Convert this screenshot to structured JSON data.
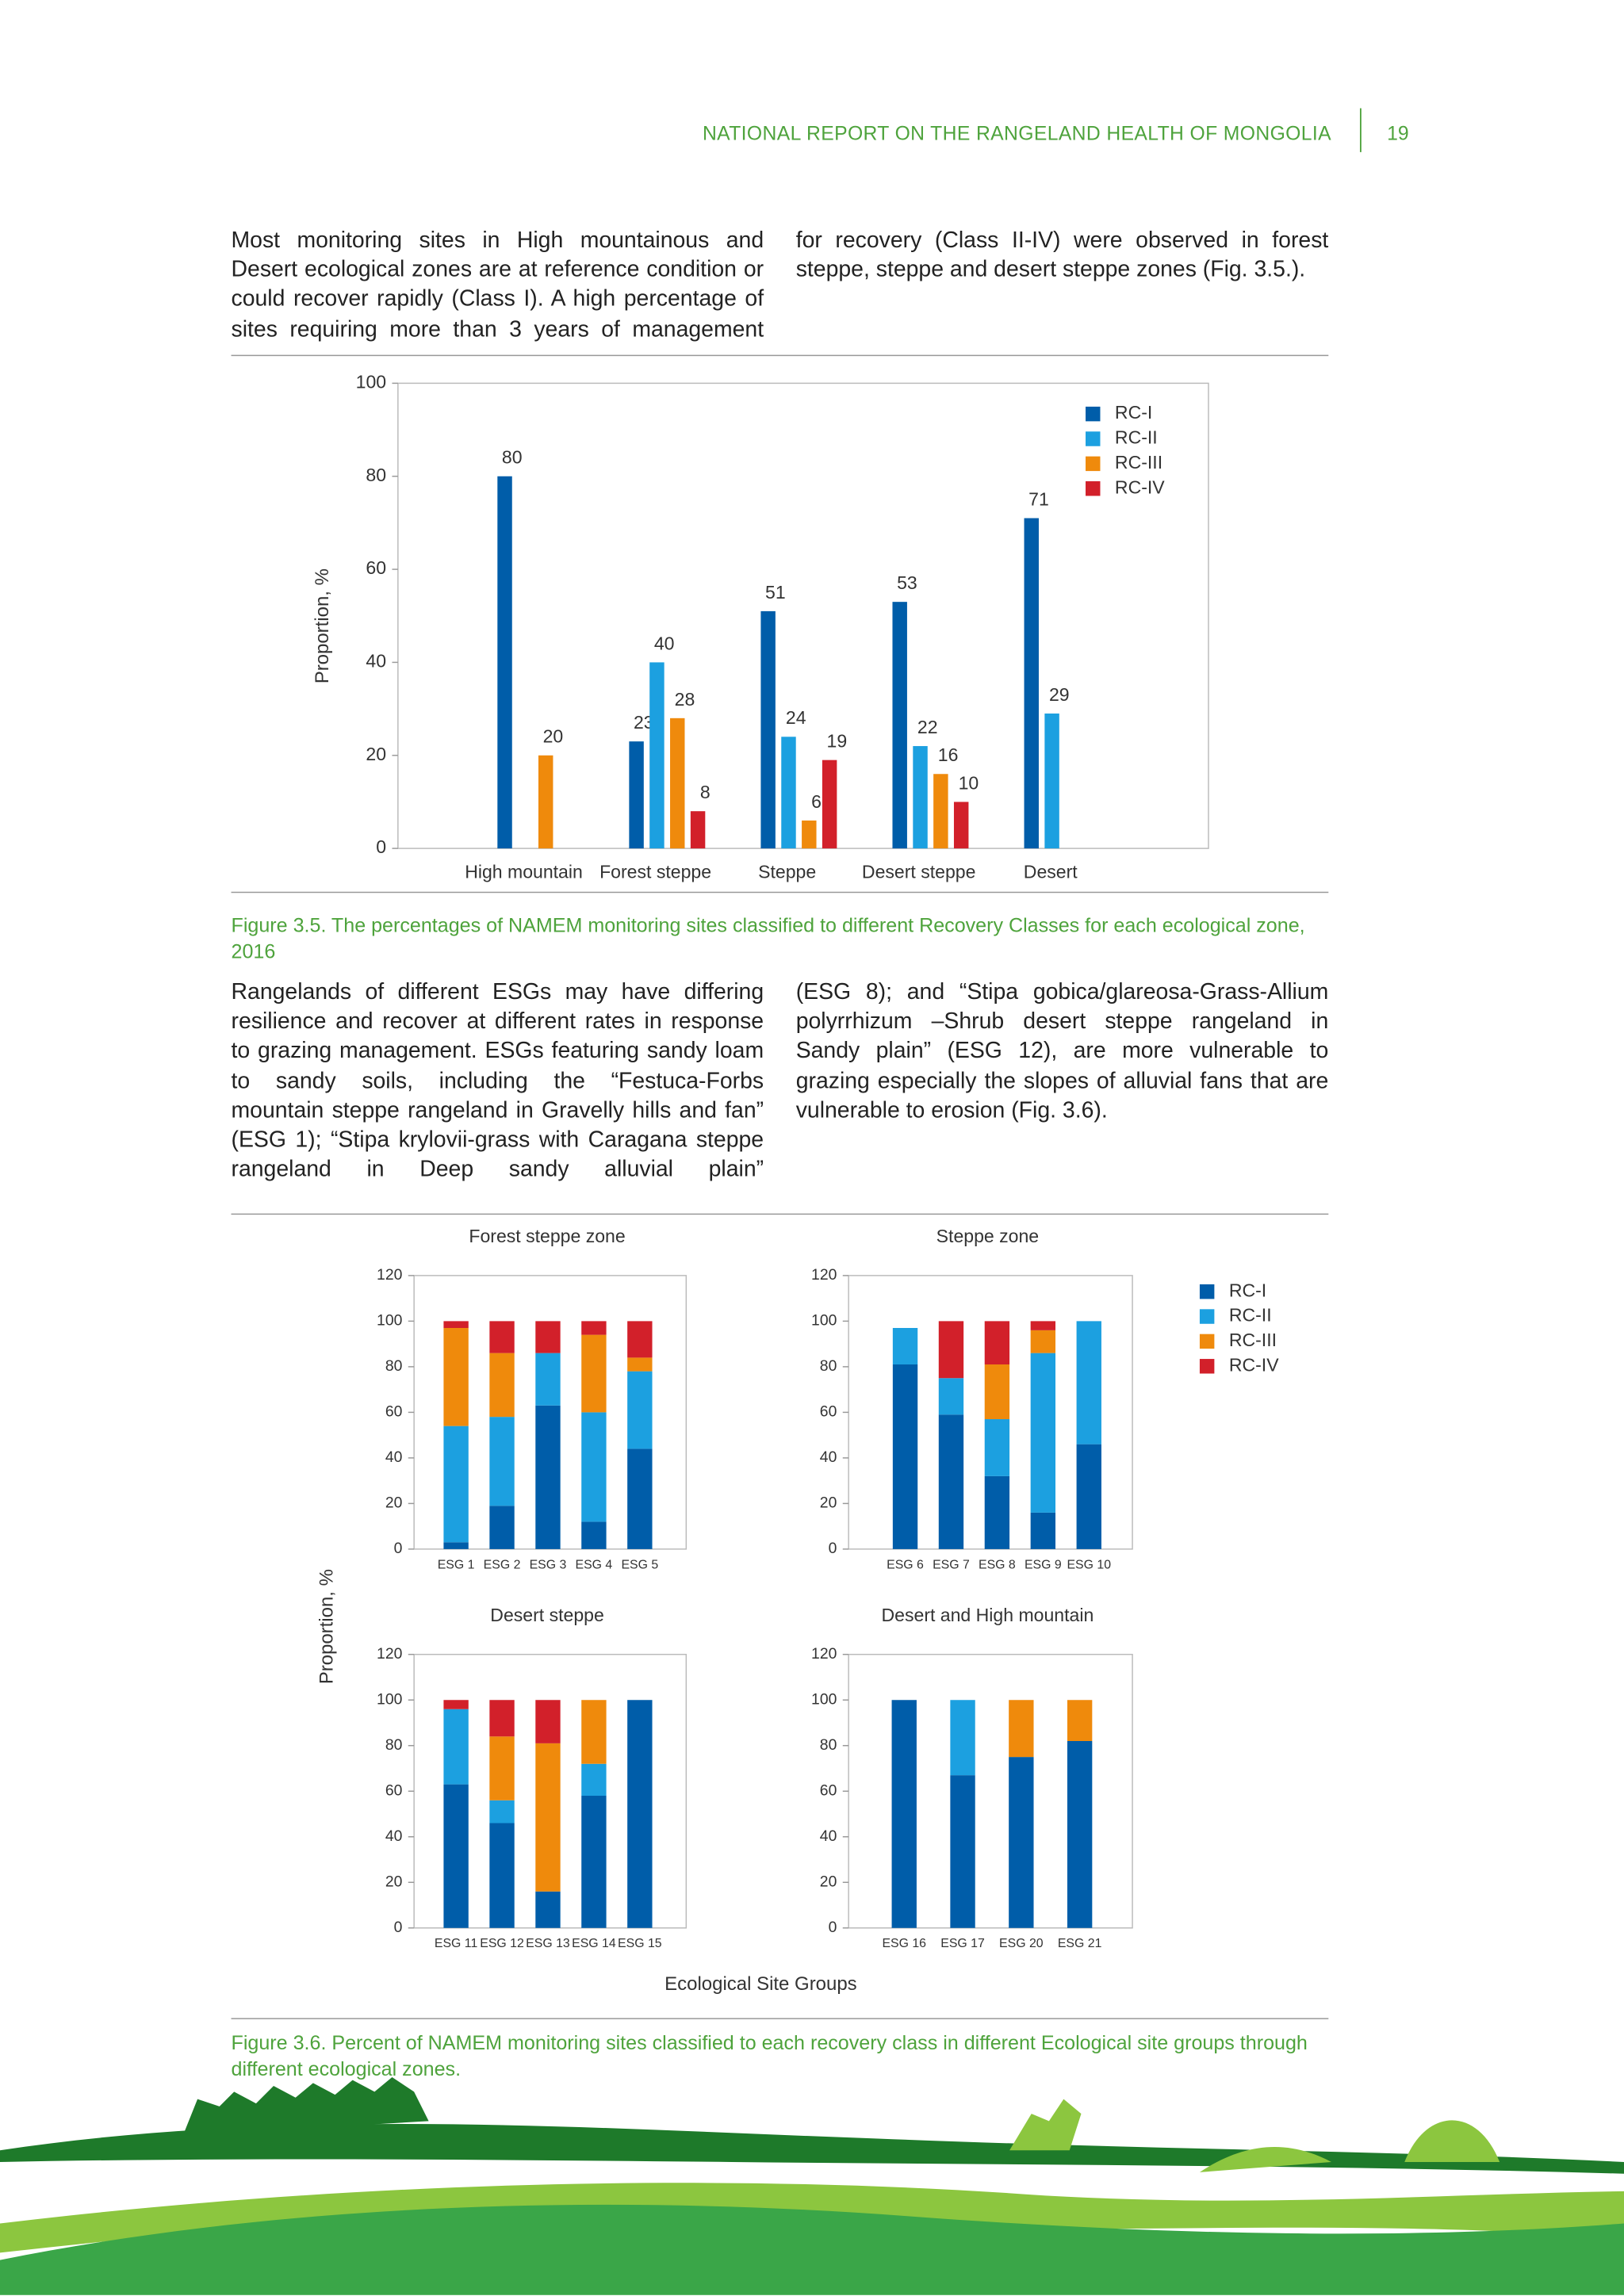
{
  "header": {
    "title": "NATIONAL REPORT ON THE RANGELAND HEALTH OF MONGOLIA",
    "page": "19"
  },
  "text": {
    "block1_left": "Most monitoring sites in High mountainous and Desert ecological zones are at reference condition or could recover rapidly (Class I). A high percentage of sites requiring more than 3 years of management",
    "block1_right": "for recovery (Class II-IV) were observed in forest steppe, steppe and desert steppe zones (Fig. 3.5.).",
    "block2_left": "Rangelands of different ESGs may have differing resilience and recover at different rates in response to grazing management. ESGs featuring sandy loam to sandy soils, including the “Festuca-Forbs mountain steppe rangeland in Gravelly hills and fan” (ESG 1); “Stipa krylovii-grass with Caragana steppe rangeland in Deep sandy alluvial plain”",
    "block2_right": "(ESG 8); and “Stipa gobica/glareosa-Grass-Allium polyrrhizum –Shrub desert steppe rangeland in Sandy plain” (ESG 12), are more vulnerable to grazing especially the slopes of alluvial fans that are vulnerable to erosion (Fig. 3.6)."
  },
  "captions": [
    "Figure 3.5. The percentages of NAMEM monitoring sites classified to different Recovery Classes for each ecological zone, 2016",
    "Figure 3.6. Percent of NAMEM monitoring sites classified to each recovery class in different Ecological site groups through different ecological zones."
  ],
  "figure2": {
    "ylabel": "Proportion, %",
    "xlabel": "Ecological Site Groups"
  },
  "chart_data": [
    {
      "type": "bar",
      "ylabel": "Proportion, %",
      "categories": [
        "High mountain",
        "Forest steppe",
        "Steppe",
        "Desert steppe",
        "Desert"
      ],
      "series": [
        {
          "name": "RC-I",
          "color": "#005da9",
          "values": [
            80,
            23,
            51,
            53,
            71
          ]
        },
        {
          "name": "RC-II",
          "color": "#1ca0e0",
          "values": [
            null,
            40,
            24,
            22,
            29
          ]
        },
        {
          "name": "RC-III",
          "color": "#ef8a0c",
          "values": [
            20,
            28,
            6,
            16,
            null
          ]
        },
        {
          "name": "RC-IV",
          "color": "#d2202a",
          "values": [
            null,
            8,
            19,
            10,
            null
          ]
        }
      ],
      "ylim": [
        0,
        100
      ],
      "yticks": [
        0,
        20,
        40,
        60,
        80,
        100
      ],
      "grid": false,
      "legend": "upper right"
    },
    {
      "type": "stacked_bar",
      "title": "Forest steppe zone",
      "categories": [
        "ESG 1",
        "ESG 2",
        "ESG 3",
        "ESG 4",
        "ESG 5"
      ],
      "series": [
        {
          "name": "RC-I",
          "color": "#005da9",
          "values": [
            3,
            19,
            63,
            12,
            44
          ]
        },
        {
          "name": "RC-II",
          "color": "#1ca0e0",
          "values": [
            51,
            39,
            23,
            48,
            34
          ]
        },
        {
          "name": "RC-III",
          "color": "#ef8a0c",
          "values": [
            43,
            28,
            0,
            34,
            6
          ]
        },
        {
          "name": "RC-IV",
          "color": "#d2202a",
          "values": [
            3,
            14,
            14,
            6,
            16
          ]
        }
      ],
      "ylim": [
        0,
        120
      ],
      "yticks": [
        0,
        20,
        40,
        60,
        80,
        100,
        120
      ],
      "legend": "right"
    },
    {
      "type": "stacked_bar",
      "title": "Steppe zone",
      "categories": [
        "ESG 6",
        "ESG 7",
        "ESG 8",
        "ESG 9",
        "ESG 10"
      ],
      "series": [
        {
          "name": "RC-I",
          "color": "#005da9",
          "values": [
            81,
            59,
            32,
            16,
            46
          ]
        },
        {
          "name": "RC-II",
          "color": "#1ca0e0",
          "values": [
            16,
            16,
            25,
            70,
            54
          ]
        },
        {
          "name": "RC-III",
          "color": "#ef8a0c",
          "values": [
            0,
            0,
            24,
            10,
            0
          ]
        },
        {
          "name": "RC-IV",
          "color": "#d2202a",
          "values": [
            0,
            25,
            19,
            4,
            0
          ]
        }
      ],
      "ylim": [
        0,
        120
      ],
      "yticks": [
        0,
        20,
        40,
        60,
        80,
        100,
        120
      ]
    },
    {
      "type": "stacked_bar",
      "title": "Desert steppe",
      "categories": [
        "ESG 11",
        "ESG 12",
        "ESG 13",
        "ESG 14",
        "ESG 15"
      ],
      "series": [
        {
          "name": "RC-I",
          "color": "#005da9",
          "values": [
            63,
            46,
            16,
            58,
            100
          ]
        },
        {
          "name": "RC-II",
          "color": "#1ca0e0",
          "values": [
            33,
            10,
            0,
            14,
            0
          ]
        },
        {
          "name": "RC-III",
          "color": "#ef8a0c",
          "values": [
            0,
            28,
            65,
            28,
            0
          ]
        },
        {
          "name": "RC-IV",
          "color": "#d2202a",
          "values": [
            4,
            16,
            19,
            0,
            0
          ]
        }
      ],
      "ylim": [
        0,
        120
      ],
      "yticks": [
        0,
        20,
        40,
        60,
        80,
        100,
        120
      ]
    },
    {
      "type": "stacked_bar",
      "title": "Desert and High mountain",
      "categories": [
        "ESG 16",
        "ESG 17",
        "ESG 20",
        "ESG 21"
      ],
      "series": [
        {
          "name": "RC-I",
          "color": "#005da9",
          "values": [
            100,
            67,
            75,
            82
          ]
        },
        {
          "name": "RC-II",
          "color": "#1ca0e0",
          "values": [
            0,
            33,
            0,
            0
          ]
        },
        {
          "name": "RC-III",
          "color": "#ef8a0c",
          "values": [
            0,
            0,
            25,
            18
          ]
        },
        {
          "name": "RC-IV",
          "color": "#d2202a",
          "values": [
            0,
            0,
            0,
            0
          ]
        }
      ],
      "ylim": [
        0,
        120
      ],
      "yticks": [
        0,
        20,
        40,
        60,
        80,
        100,
        120
      ]
    }
  ]
}
